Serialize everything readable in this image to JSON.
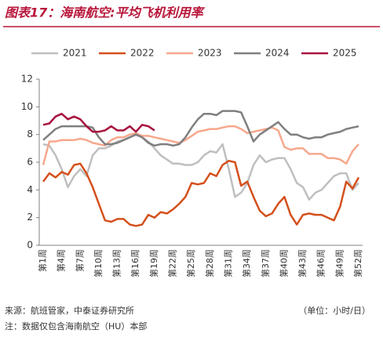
{
  "chart_data": {
    "type": "line",
    "title": "图表17：海南航空:平均飞机利用率",
    "categories": [
      "第1周",
      null,
      null,
      "第4周",
      null,
      null,
      "第7周",
      null,
      null,
      "第10周",
      null,
      null,
      "第13周",
      null,
      null,
      "第16周",
      null,
      null,
      "第19周",
      null,
      null,
      "第22周",
      null,
      null,
      "第25周",
      null,
      null,
      "第28周",
      null,
      null,
      "第31周",
      null,
      null,
      "第34周",
      null,
      null,
      "第37周",
      null,
      null,
      "第40周",
      null,
      null,
      "第43周",
      null,
      null,
      "第46周",
      null,
      null,
      "第49周",
      null,
      null,
      "第52周"
    ],
    "series": [
      {
        "name": "2021",
        "color": "#bfbfbf",
        "values": [
          7.3,
          7.2,
          6.5,
          5.5,
          4.2,
          5.0,
          5.5,
          5.0,
          6.5,
          7.0,
          7.0,
          7.2,
          7.5,
          7.6,
          7.8,
          8.0,
          7.8,
          7.5,
          7.0,
          6.5,
          6.2,
          5.9,
          5.9,
          5.8,
          5.8,
          6.0,
          6.5,
          6.8,
          6.7,
          7.3,
          5.5,
          3.5,
          3.8,
          4.5,
          5.8,
          6.5,
          6.0,
          6.2,
          6.3,
          6.3,
          5.5,
          4.5,
          4.2,
          3.3,
          3.8,
          4.0,
          4.5,
          5.0,
          5.2,
          5.2,
          4.0,
          4.5
        ]
      },
      {
        "name": "2022",
        "color": "#d4501c",
        "values": [
          4.6,
          5.2,
          4.9,
          5.3,
          5.1,
          5.8,
          5.9,
          5.2,
          4.2,
          3.0,
          1.8,
          1.7,
          1.9,
          1.9,
          1.5,
          1.4,
          1.5,
          2.2,
          2.0,
          2.4,
          2.3,
          2.6,
          3.0,
          3.5,
          4.5,
          4.4,
          4.5,
          5.2,
          5.0,
          5.8,
          6.1,
          6.0,
          4.3,
          4.6,
          3.5,
          2.5,
          2.1,
          2.3,
          3.0,
          3.5,
          2.2,
          1.5,
          2.2,
          2.3,
          2.2,
          2.2,
          2.0,
          1.8,
          2.8,
          4.6,
          4.1,
          4.9
        ]
      },
      {
        "name": "2023",
        "color": "#f7a88c",
        "values": [
          5.8,
          7.5,
          7.5,
          7.6,
          7.6,
          7.6,
          7.7,
          7.6,
          7.4,
          7.3,
          7.2,
          7.6,
          7.8,
          7.8,
          8.0,
          8.1,
          7.9,
          7.9,
          7.8,
          7.7,
          7.6,
          7.5,
          7.4,
          7.6,
          7.9,
          8.2,
          8.3,
          8.4,
          8.4,
          8.5,
          8.6,
          8.6,
          8.4,
          8.1,
          8.2,
          8.3,
          8.4,
          8.5,
          8.3,
          7.1,
          6.9,
          7.0,
          7.0,
          6.6,
          6.6,
          6.6,
          6.3,
          6.3,
          6.2,
          5.9,
          6.8,
          7.3
        ]
      },
      {
        "name": "2024",
        "color": "#7f7f7f",
        "values": [
          7.6,
          8.0,
          8.4,
          8.6,
          8.6,
          8.6,
          8.6,
          8.6,
          8.5,
          7.8,
          7.3,
          7.3,
          7.4,
          7.6,
          7.8,
          8.0,
          7.8,
          7.4,
          7.2,
          7.3,
          7.3,
          7.2,
          7.3,
          7.8,
          8.5,
          9.1,
          9.5,
          9.5,
          9.4,
          9.7,
          9.7,
          9.7,
          9.6,
          8.6,
          7.5,
          8.0,
          8.3,
          8.6,
          8.9,
          8.4,
          8.0,
          8.0,
          7.8,
          7.7,
          7.8,
          7.8,
          8.0,
          8.1,
          8.2,
          8.4,
          8.5,
          8.6
        ]
      },
      {
        "name": "2025",
        "color": "#a8133f",
        "values": [
          8.7,
          8.8,
          9.3,
          9.5,
          9.1,
          9.3,
          9.1,
          8.6,
          8.2,
          8.2,
          8.3,
          8.6,
          8.3,
          8.3,
          8.6,
          8.2,
          8.7,
          8.6,
          8.3,
          null,
          null,
          null,
          null,
          null,
          null,
          null,
          null,
          null,
          null,
          null,
          null,
          null,
          null,
          null,
          null,
          null,
          null,
          null,
          null,
          null,
          null,
          null,
          null,
          null,
          null,
          null,
          null,
          null,
          null,
          null,
          null,
          null
        ]
      }
    ],
    "ylim": [
      0,
      12
    ],
    "yticks": [
      0,
      2,
      4,
      6,
      8,
      10,
      12
    ],
    "grid": false,
    "legend": "top",
    "source": "来源：航班管家，中泰证券研究所",
    "unit": "（单位：小时/日）",
    "note": "注：数据仅包含海南航空（HU）本部"
  }
}
